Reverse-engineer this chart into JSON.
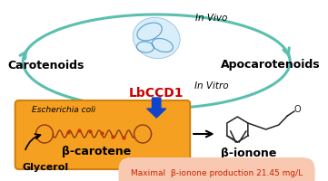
{
  "background_color": "#ffffff",
  "ellipse_color": "#5bbfb0",
  "ellipse_lw": 2.2,
  "in_vivo_text": "In Vivo",
  "in_vitro_text": "In Vitro",
  "carotenoids_text": "Carotenoids",
  "apocarotenoids_text": "Apocarotenoids",
  "lbccd1_text": "LbCCD1",
  "lbccd1_color": "#cc0000",
  "ecoli_text": "Escherichia coli",
  "beta_carotene_text": "β-carotene",
  "beta_ionone_text": "β-ionone",
  "glycerol_text": "Glycerol",
  "maximal_text": "Maximal  β-ionone production 21.45 mg/L",
  "maximal_color": "#cc2200",
  "maximal_bg": "#f8c8b0",
  "orange_face": "#f5a020",
  "orange_edge": "#d08010",
  "blue_arrow_color": "#1144cc",
  "brown_color": "#8B3A10",
  "dark_color": "#222222"
}
